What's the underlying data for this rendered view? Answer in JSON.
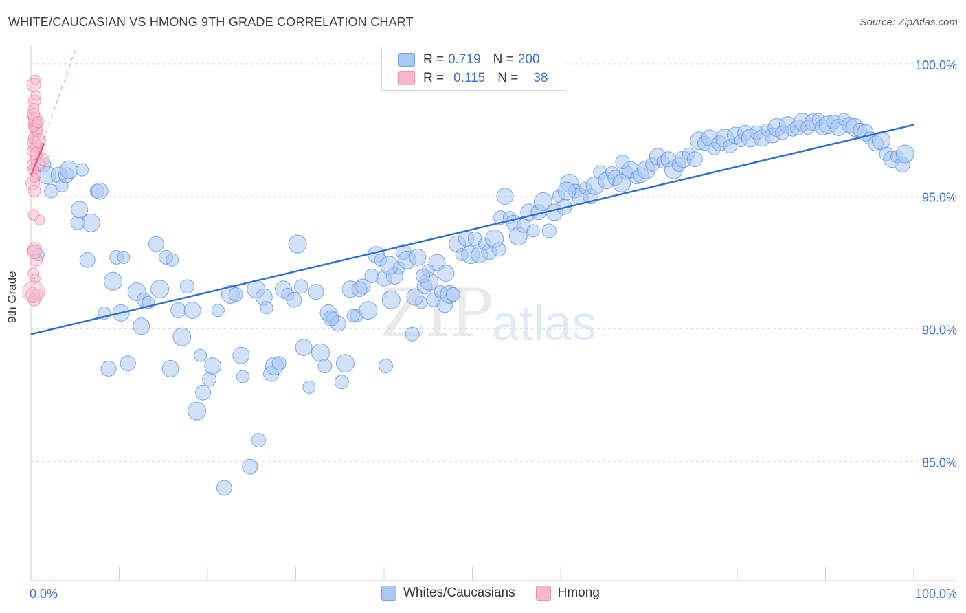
{
  "title": "WHITE/CAUCASIAN VS HMONG 9TH GRADE CORRELATION CHART",
  "source": "Source: ZipAtlas.com",
  "watermark_main": "ZIP",
  "watermark_sub": "atlas",
  "legend": {
    "rows": [
      {
        "r_label": "R =",
        "r_value": "0.719",
        "n_label": "N =",
        "n_value": "200",
        "color": "#a9c8f2"
      },
      {
        "r_label": "R =",
        "r_value": "0.115",
        "n_label": "N =",
        "n_value": "38",
        "color": "#f5b7c9"
      }
    ]
  },
  "bottom_legend": [
    {
      "label": "Whites/Caucasians",
      "color": "#a9c8f2"
    },
    {
      "label": "Hmong",
      "color": "#f5b7c9"
    }
  ],
  "chart_data": {
    "type": "scatter",
    "title": "WHITE/CAUCASIAN VS HMONG 9TH GRADE CORRELATION CHART",
    "xlabel": "",
    "ylabel": "9th Grade",
    "xlim": [
      0,
      100
    ],
    "ylim": [
      80.5,
      100.8
    ],
    "x_tick_labels": [
      "0.0%",
      "100.0%"
    ],
    "y_ticks": [
      85,
      90,
      95,
      100
    ],
    "y_tick_labels": [
      "85.0%",
      "90.0%",
      "95.0%",
      "100.0%"
    ],
    "grid": "horizontal dashed",
    "colors": {
      "whites": "#4f86d9",
      "whites_fill": "#a9c8f2",
      "hmong": "#e86f94",
      "hmong_fill": "#f5b7c9",
      "axis_text": "#3f6fd0"
    },
    "series": [
      {
        "name": "Whites/Caucasians",
        "trend": {
          "x": [
            0,
            100
          ],
          "y": [
            89.8,
            97.7
          ]
        },
        "points": [
          [
            0.8,
            92.8
          ],
          [
            1.4,
            96.2
          ],
          [
            1.8,
            95.8
          ],
          [
            2.3,
            95.2
          ],
          [
            3.2,
            95.8
          ],
          [
            3.5,
            95.4
          ],
          [
            4.0,
            95.8
          ],
          [
            4.3,
            96.0
          ],
          [
            5.3,
            94.0
          ],
          [
            5.5,
            94.5
          ],
          [
            5.8,
            96.0
          ],
          [
            6.4,
            92.6
          ],
          [
            6.8,
            94.0
          ],
          [
            7.5,
            95.2
          ],
          [
            7.8,
            95.2
          ],
          [
            8.3,
            90.6
          ],
          [
            8.8,
            88.5
          ],
          [
            9.3,
            91.8
          ],
          [
            9.7,
            92.7
          ],
          [
            10.2,
            90.6
          ],
          [
            10.5,
            92.7
          ],
          [
            11.0,
            88.7
          ],
          [
            12.0,
            91.4
          ],
          [
            12.8,
            91.1
          ],
          [
            12.5,
            90.1
          ],
          [
            13.3,
            91.0
          ],
          [
            14.2,
            93.2
          ],
          [
            14.6,
            91.5
          ],
          [
            15.3,
            92.7
          ],
          [
            15.8,
            88.5
          ],
          [
            16.0,
            92.6
          ],
          [
            16.7,
            90.7
          ],
          [
            17.1,
            89.7
          ],
          [
            17.7,
            91.6
          ],
          [
            18.3,
            90.7
          ],
          [
            19.2,
            89.0
          ],
          [
            19.5,
            87.6
          ],
          [
            18.8,
            86.9
          ],
          [
            20.2,
            88.1
          ],
          [
            20.6,
            88.6
          ],
          [
            21.2,
            90.7
          ],
          [
            21.9,
            84.0
          ],
          [
            22.6,
            91.3
          ],
          [
            23.2,
            91.3
          ],
          [
            23.8,
            89.0
          ],
          [
            24.0,
            88.2
          ],
          [
            24.8,
            84.8
          ],
          [
            25.5,
            91.5
          ],
          [
            25.8,
            85.8
          ],
          [
            26.4,
            91.2
          ],
          [
            26.7,
            90.8
          ],
          [
            27.2,
            88.3
          ],
          [
            27.6,
            88.6
          ],
          [
            28.1,
            88.7
          ],
          [
            28.6,
            91.5
          ],
          [
            29.1,
            91.3
          ],
          [
            29.8,
            91.1
          ],
          [
            30.2,
            93.2
          ],
          [
            30.6,
            91.6
          ],
          [
            30.9,
            89.3
          ],
          [
            31.5,
            87.8
          ],
          [
            32.3,
            91.4
          ],
          [
            32.8,
            89.1
          ],
          [
            33.3,
            88.6
          ],
          [
            33.7,
            90.6
          ],
          [
            34.2,
            90.4
          ],
          [
            34.8,
            90.2
          ],
          [
            35.6,
            88.7
          ],
          [
            35.2,
            88.0
          ],
          [
            36.2,
            91.5
          ],
          [
            36.9,
            90.5
          ],
          [
            37.6,
            91.6
          ],
          [
            38.2,
            90.7
          ],
          [
            38.6,
            92.0
          ],
          [
            39.1,
            92.8
          ],
          [
            39.6,
            92.6
          ],
          [
            40.0,
            91.9
          ],
          [
            40.8,
            91.1
          ],
          [
            40.2,
            88.6
          ],
          [
            41.2,
            92.0
          ],
          [
            41.7,
            92.3
          ],
          [
            42.2,
            92.9
          ],
          [
            42.6,
            92.6
          ],
          [
            43.2,
            89.8
          ],
          [
            43.8,
            92.7
          ],
          [
            44.2,
            91.0
          ],
          [
            44.6,
            91.6
          ],
          [
            45.1,
            91.8
          ],
          [
            45.6,
            91.1
          ],
          [
            46.0,
            92.5
          ],
          [
            46.4,
            91.4
          ],
          [
            46.9,
            90.9
          ],
          [
            47.4,
            91.3
          ],
          [
            47.8,
            91.3
          ],
          [
            48.3,
            93.2
          ],
          [
            48.8,
            92.8
          ],
          [
            49.3,
            93.4
          ],
          [
            49.8,
            92.8
          ],
          [
            50.3,
            93.4
          ],
          [
            50.8,
            92.8
          ],
          [
            51.4,
            93.2
          ],
          [
            51.9,
            92.9
          ],
          [
            52.5,
            93.4
          ],
          [
            53.2,
            94.2
          ],
          [
            53.7,
            95.0
          ],
          [
            54.2,
            94.2
          ],
          [
            54.7,
            94.0
          ],
          [
            55.2,
            93.5
          ],
          [
            55.8,
            93.9
          ],
          [
            56.4,
            94.4
          ],
          [
            56.9,
            93.7
          ],
          [
            57.5,
            94.4
          ],
          [
            58.0,
            94.8
          ],
          [
            58.7,
            93.7
          ],
          [
            59.3,
            94.4
          ],
          [
            59.8,
            95.0
          ],
          [
            60.4,
            94.6
          ],
          [
            61.0,
            95.5
          ],
          [
            61.6,
            95.2
          ],
          [
            62.2,
            95.0
          ],
          [
            62.8,
            95.3
          ],
          [
            63.4,
            95.0
          ],
          [
            63.9,
            95.4
          ],
          [
            64.5,
            95.9
          ],
          [
            65.2,
            95.6
          ],
          [
            65.8,
            95.9
          ],
          [
            66.2,
            95.7
          ],
          [
            66.9,
            95.5
          ],
          [
            67.4,
            95.9
          ],
          [
            67.9,
            96.0
          ],
          [
            68.6,
            95.7
          ],
          [
            69.1,
            95.8
          ],
          [
            69.7,
            96.0
          ],
          [
            70.4,
            96.2
          ],
          [
            71.0,
            96.5
          ],
          [
            71.6,
            96.3
          ],
          [
            72.2,
            96.4
          ],
          [
            72.8,
            96.0
          ],
          [
            73.4,
            96.2
          ],
          [
            73.9,
            96.4
          ],
          [
            74.5,
            96.6
          ],
          [
            75.2,
            96.4
          ],
          [
            75.7,
            97.1
          ],
          [
            76.3,
            97.0
          ],
          [
            76.9,
            97.2
          ],
          [
            77.4,
            96.8
          ],
          [
            78.0,
            97.0
          ],
          [
            78.6,
            97.2
          ],
          [
            79.2,
            96.9
          ],
          [
            79.8,
            97.3
          ],
          [
            80.4,
            97.1
          ],
          [
            80.9,
            97.4
          ],
          [
            81.5,
            97.2
          ],
          [
            82.2,
            97.4
          ],
          [
            82.8,
            97.2
          ],
          [
            83.4,
            97.5
          ],
          [
            84.0,
            97.3
          ],
          [
            84.5,
            97.6
          ],
          [
            85.1,
            97.4
          ],
          [
            85.7,
            97.7
          ],
          [
            86.3,
            97.5
          ],
          [
            86.9,
            97.6
          ],
          [
            87.4,
            97.8
          ],
          [
            88.0,
            97.6
          ],
          [
            88.6,
            97.8
          ],
          [
            89.2,
            97.9
          ],
          [
            89.7,
            97.6
          ],
          [
            90.3,
            97.7
          ],
          [
            90.9,
            97.8
          ],
          [
            91.5,
            97.6
          ],
          [
            92.1,
            97.9
          ],
          [
            92.7,
            97.7
          ],
          [
            93.3,
            97.6
          ],
          [
            93.9,
            97.5
          ],
          [
            94.5,
            97.4
          ],
          [
            95.0,
            97.2
          ],
          [
            95.7,
            97.0
          ],
          [
            96.3,
            97.1
          ],
          [
            96.9,
            96.6
          ],
          [
            97.5,
            96.4
          ],
          [
            98.1,
            96.5
          ],
          [
            98.7,
            96.2
          ],
          [
            99.0,
            96.6
          ],
          [
            53.0,
            93.0
          ],
          [
            47.0,
            92.1
          ],
          [
            45.0,
            92.2
          ],
          [
            37.2,
            91.5
          ],
          [
            40.6,
            92.4
          ],
          [
            44.4,
            92.0
          ],
          [
            43.5,
            91.2
          ],
          [
            36.5,
            90.5
          ],
          [
            34.0,
            90.4
          ],
          [
            60.7,
            95.2
          ],
          [
            67.0,
            96.3
          ]
        ]
      },
      {
        "name": "Hmong",
        "trend": {
          "x": [
            0,
            1.5
          ],
          "y": [
            95.8,
            97.0
          ]
        },
        "trend_extension": {
          "x": [
            0,
            5
          ],
          "y": [
            95.8,
            100.5
          ]
        },
        "points": [
          [
            0.5,
            99.4
          ],
          [
            0.3,
            99.2
          ],
          [
            0.4,
            98.6
          ],
          [
            0.3,
            98.3
          ],
          [
            0.2,
            98.0
          ],
          [
            0.5,
            97.7
          ],
          [
            0.6,
            97.5
          ],
          [
            0.3,
            97.2
          ],
          [
            0.7,
            97.4
          ],
          [
            0.4,
            97.0
          ],
          [
            0.6,
            96.9
          ],
          [
            0.2,
            96.7
          ],
          [
            0.5,
            96.4
          ],
          [
            0.8,
            96.2
          ],
          [
            1.4,
            96.4
          ],
          [
            0.3,
            96.0
          ],
          [
            0.6,
            95.8
          ],
          [
            0.2,
            95.5
          ],
          [
            0.4,
            95.2
          ],
          [
            0.3,
            94.3
          ],
          [
            1.0,
            94.1
          ],
          [
            0.4,
            93.0
          ],
          [
            0.6,
            92.6
          ],
          [
            0.3,
            92.1
          ],
          [
            0.5,
            91.9
          ],
          [
            0.2,
            91.3
          ],
          [
            0.4,
            91.1
          ],
          [
            0.7,
            91.3
          ],
          [
            0.3,
            97.6
          ],
          [
            0.9,
            97.1
          ],
          [
            0.6,
            96.6
          ],
          [
            0.2,
            96.2
          ],
          [
            0.4,
            95.7
          ],
          [
            0.5,
            97.9
          ],
          [
            0.3,
            98.1
          ],
          [
            0.8,
            97.8
          ],
          [
            0.6,
            98.8
          ],
          [
            0.4,
            92.9
          ]
        ]
      }
    ]
  }
}
